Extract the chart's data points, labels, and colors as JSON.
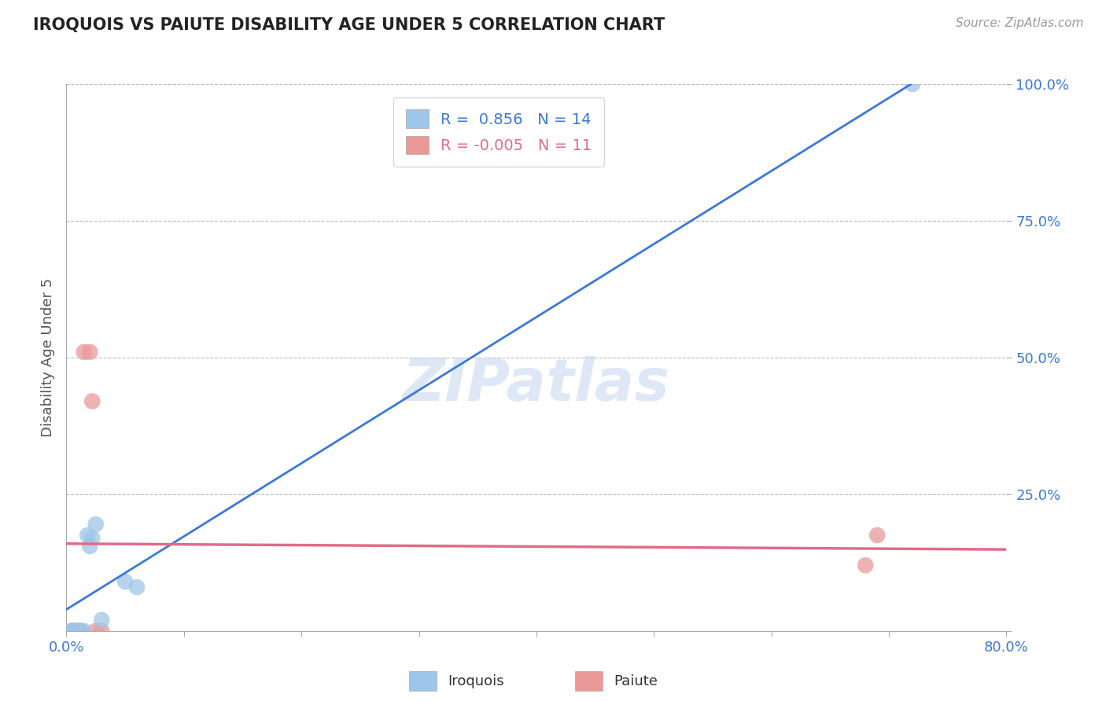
{
  "title": "IROQUOIS VS PAIUTE DISABILITY AGE UNDER 5 CORRELATION CHART",
  "source_text": "Source: ZipAtlas.com",
  "ylabel": "Disability Age Under 5",
  "xlim": [
    0.0,
    0.8
  ],
  "ylim": [
    0.0,
    1.0
  ],
  "xticks": [
    0.0,
    0.1,
    0.2,
    0.3,
    0.4,
    0.5,
    0.6,
    0.7,
    0.8
  ],
  "yticks": [
    0.0,
    0.25,
    0.5,
    0.75,
    1.0
  ],
  "xtick_labels": [
    "0.0%",
    "",
    "",
    "",
    "",
    "",
    "",
    "",
    "80.0%"
  ],
  "ytick_labels": [
    "",
    "25.0%",
    "50.0%",
    "75.0%",
    "100.0%"
  ],
  "iroquois_x": [
    0.005,
    0.005,
    0.008,
    0.01,
    0.012,
    0.015,
    0.018,
    0.02,
    0.022,
    0.025,
    0.03,
    0.05,
    0.06,
    0.72
  ],
  "iroquois_y": [
    0.0,
    0.0,
    0.0,
    0.0,
    0.0,
    0.0,
    0.175,
    0.155,
    0.17,
    0.195,
    0.02,
    0.09,
    0.08,
    1.0
  ],
  "paiute_x": [
    0.005,
    0.007,
    0.01,
    0.012,
    0.015,
    0.02,
    0.022,
    0.025,
    0.03,
    0.68,
    0.69
  ],
  "paiute_y": [
    0.0,
    0.0,
    0.0,
    0.0,
    0.51,
    0.51,
    0.42,
    0.0,
    0.0,
    0.12,
    0.175
  ],
  "iroquois_R": 0.856,
  "iroquois_N": 14,
  "paiute_R": -0.005,
  "paiute_N": 11,
  "iroquois_color": "#9fc5e8",
  "paiute_color": "#ea9999",
  "iroquois_line_color": "#3c78d8",
  "paiute_line_color": "#e06c8a",
  "watermark_text": "ZIPatlas",
  "background_color": "#ffffff",
  "grid_color": "#bbbbbb",
  "title_color": "#222222",
  "axis_label_color": "#555555",
  "tick_color": "#3c78d8",
  "legend_R_color": "#3c78d8",
  "legend_R2_color": "#e06c8a"
}
